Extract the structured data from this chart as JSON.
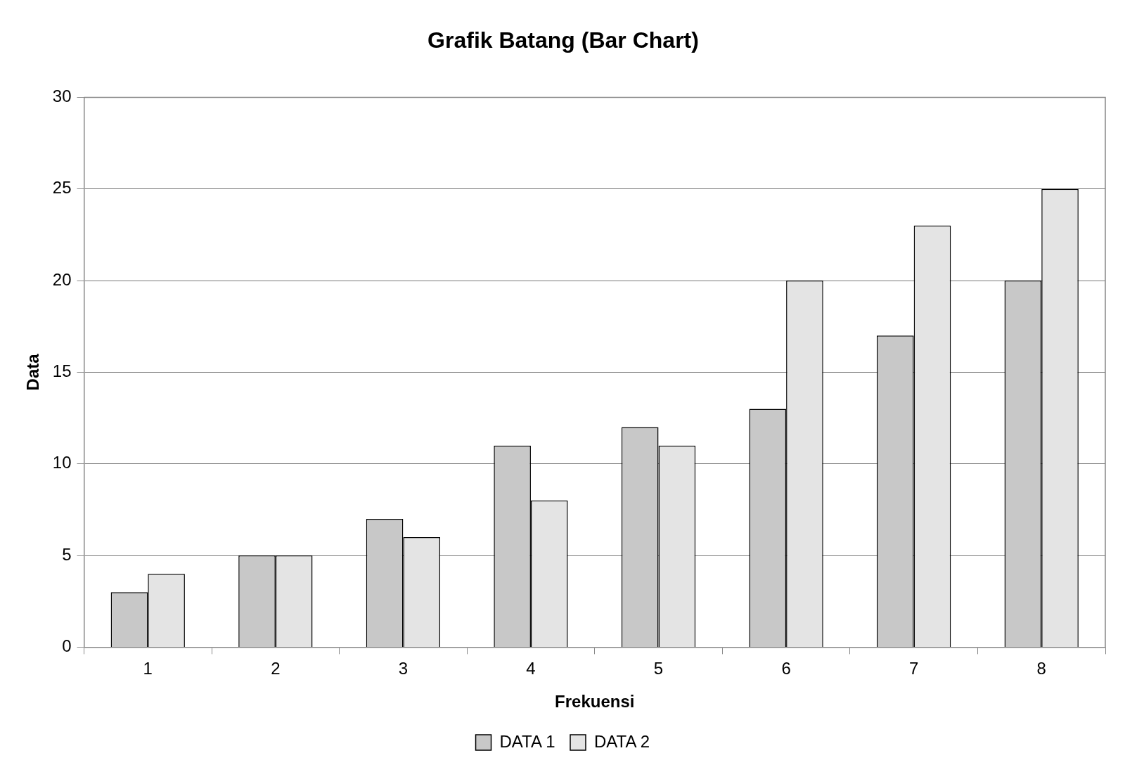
{
  "chart_data": {
    "type": "bar",
    "title": "Grafik Batang (Bar Chart)",
    "xlabel": "Frekuensi",
    "ylabel": "Data",
    "categories": [
      "1",
      "2",
      "3",
      "4",
      "5",
      "6",
      "7",
      "8"
    ],
    "series": [
      {
        "name": "DATA 1",
        "color": "#c8c8c8",
        "values": [
          3,
          5,
          7,
          11,
          12,
          13,
          17,
          20
        ]
      },
      {
        "name": "DATA 2",
        "color": "#e4e4e4",
        "values": [
          4,
          5,
          6,
          8,
          11,
          20,
          23,
          25
        ]
      }
    ],
    "ylim": [
      0,
      30
    ],
    "yticks": [
      0,
      5,
      10,
      15,
      20,
      25,
      30
    ],
    "grid": "y",
    "legend": "bottom"
  }
}
